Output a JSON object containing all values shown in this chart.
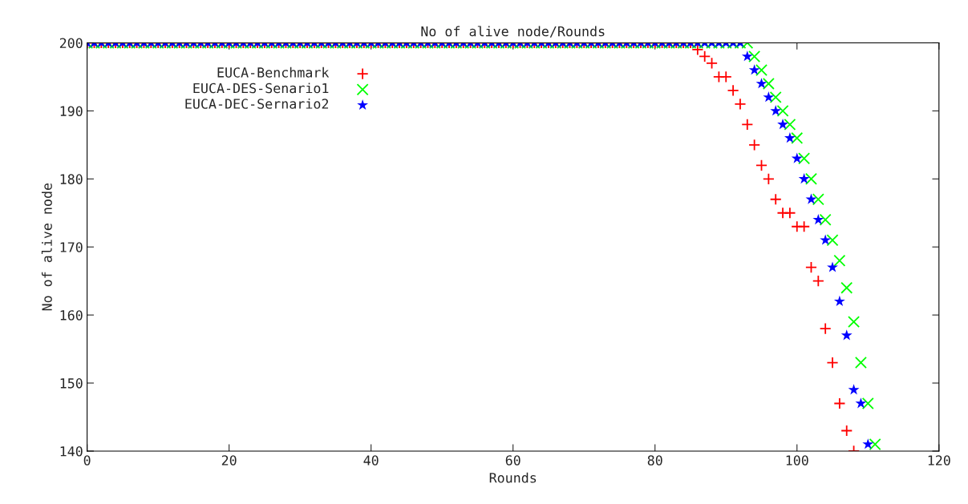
{
  "chart_data": {
    "type": "scatter",
    "title": "No of alive node/Rounds",
    "xlabel": "Rounds",
    "ylabel": "No of alive node",
    "xlim": [
      0,
      120
    ],
    "ylim": [
      140,
      200
    ],
    "xticks": [
      0,
      20,
      40,
      60,
      80,
      100,
      120
    ],
    "yticks": [
      140,
      150,
      160,
      170,
      180,
      190,
      200
    ],
    "grid": false,
    "legend": "top left",
    "series": [
      {
        "name": "EUCA-Benchmark",
        "color": "#ff0000",
        "marker": "plus",
        "x": [
          0,
          1,
          2,
          3,
          4,
          5,
          6,
          7,
          8,
          9,
          10,
          11,
          12,
          13,
          14,
          15,
          16,
          17,
          18,
          19,
          20,
          21,
          22,
          23,
          24,
          25,
          26,
          27,
          28,
          29,
          30,
          31,
          32,
          33,
          34,
          35,
          36,
          37,
          38,
          39,
          40,
          41,
          42,
          43,
          44,
          45,
          46,
          47,
          48,
          49,
          50,
          51,
          52,
          53,
          54,
          55,
          56,
          57,
          58,
          59,
          60,
          61,
          62,
          63,
          64,
          65,
          66,
          67,
          68,
          69,
          70,
          71,
          72,
          73,
          74,
          75,
          76,
          77,
          78,
          79,
          80,
          81,
          82,
          83,
          84,
          85,
          86,
          87,
          88,
          89,
          90,
          91,
          92,
          93,
          94,
          95,
          96,
          97,
          98,
          99,
          100,
          101,
          102,
          103,
          104,
          105,
          106,
          107,
          108
        ],
        "values": [
          200,
          200,
          200,
          200,
          200,
          200,
          200,
          200,
          200,
          200,
          200,
          200,
          200,
          200,
          200,
          200,
          200,
          200,
          200,
          200,
          200,
          200,
          200,
          200,
          200,
          200,
          200,
          200,
          200,
          200,
          200,
          200,
          200,
          200,
          200,
          200,
          200,
          200,
          200,
          200,
          200,
          200,
          200,
          200,
          200,
          200,
          200,
          200,
          200,
          200,
          200,
          200,
          200,
          200,
          200,
          200,
          200,
          200,
          200,
          200,
          200,
          200,
          200,
          200,
          200,
          200,
          200,
          200,
          200,
          200,
          200,
          200,
          200,
          200,
          200,
          200,
          200,
          200,
          200,
          200,
          200,
          200,
          200,
          200,
          200,
          200,
          199,
          198,
          197,
          195,
          195,
          193,
          191,
          188,
          185,
          182,
          180,
          177,
          175,
          175,
          173,
          173,
          167,
          165,
          158,
          153,
          147,
          143,
          140
        ]
      },
      {
        "name": "EUCA-DES-Senario1",
        "color": "#00ff00",
        "marker": "cross",
        "x": [
          0,
          1,
          2,
          3,
          4,
          5,
          6,
          7,
          8,
          9,
          10,
          11,
          12,
          13,
          14,
          15,
          16,
          17,
          18,
          19,
          20,
          21,
          22,
          23,
          24,
          25,
          26,
          27,
          28,
          29,
          30,
          31,
          32,
          33,
          34,
          35,
          36,
          37,
          38,
          39,
          40,
          41,
          42,
          43,
          44,
          45,
          46,
          47,
          48,
          49,
          50,
          51,
          52,
          53,
          54,
          55,
          56,
          57,
          58,
          59,
          60,
          61,
          62,
          63,
          64,
          65,
          66,
          67,
          68,
          69,
          70,
          71,
          72,
          73,
          74,
          75,
          76,
          77,
          78,
          79,
          80,
          81,
          82,
          83,
          84,
          85,
          86,
          87,
          88,
          89,
          90,
          91,
          92,
          93,
          94,
          95,
          96,
          97,
          98,
          99,
          100,
          101,
          102,
          103,
          104,
          105,
          106,
          107,
          108,
          109,
          110,
          111
        ],
        "values": [
          200,
          200,
          200,
          200,
          200,
          200,
          200,
          200,
          200,
          200,
          200,
          200,
          200,
          200,
          200,
          200,
          200,
          200,
          200,
          200,
          200,
          200,
          200,
          200,
          200,
          200,
          200,
          200,
          200,
          200,
          200,
          200,
          200,
          200,
          200,
          200,
          200,
          200,
          200,
          200,
          200,
          200,
          200,
          200,
          200,
          200,
          200,
          200,
          200,
          200,
          200,
          200,
          200,
          200,
          200,
          200,
          200,
          200,
          200,
          200,
          200,
          200,
          200,
          200,
          200,
          200,
          200,
          200,
          200,
          200,
          200,
          200,
          200,
          200,
          200,
          200,
          200,
          200,
          200,
          200,
          200,
          200,
          200,
          200,
          200,
          200,
          200,
          200,
          200,
          200,
          200,
          200,
          200,
          200,
          198,
          196,
          194,
          192,
          190,
          188,
          186,
          183,
          180,
          177,
          174,
          171,
          168,
          164,
          159,
          153,
          147,
          141
        ]
      },
      {
        "name": "EUCA-DEC-Sernario2",
        "color": "#0000ff",
        "marker": "star",
        "x": [
          0,
          1,
          2,
          3,
          4,
          5,
          6,
          7,
          8,
          9,
          10,
          11,
          12,
          13,
          14,
          15,
          16,
          17,
          18,
          19,
          20,
          21,
          22,
          23,
          24,
          25,
          26,
          27,
          28,
          29,
          30,
          31,
          32,
          33,
          34,
          35,
          36,
          37,
          38,
          39,
          40,
          41,
          42,
          43,
          44,
          45,
          46,
          47,
          48,
          49,
          50,
          51,
          52,
          53,
          54,
          55,
          56,
          57,
          58,
          59,
          60,
          61,
          62,
          63,
          64,
          65,
          66,
          67,
          68,
          69,
          70,
          71,
          72,
          73,
          74,
          75,
          76,
          77,
          78,
          79,
          80,
          81,
          82,
          83,
          84,
          85,
          86,
          87,
          88,
          89,
          90,
          91,
          92,
          93,
          94,
          95,
          96,
          97,
          98,
          99,
          100,
          101,
          102,
          103,
          104,
          105,
          106,
          107,
          108,
          109,
          110
        ],
        "values": [
          200,
          200,
          200,
          200,
          200,
          200,
          200,
          200,
          200,
          200,
          200,
          200,
          200,
          200,
          200,
          200,
          200,
          200,
          200,
          200,
          200,
          200,
          200,
          200,
          200,
          200,
          200,
          200,
          200,
          200,
          200,
          200,
          200,
          200,
          200,
          200,
          200,
          200,
          200,
          200,
          200,
          200,
          200,
          200,
          200,
          200,
          200,
          200,
          200,
          200,
          200,
          200,
          200,
          200,
          200,
          200,
          200,
          200,
          200,
          200,
          200,
          200,
          200,
          200,
          200,
          200,
          200,
          200,
          200,
          200,
          200,
          200,
          200,
          200,
          200,
          200,
          200,
          200,
          200,
          200,
          200,
          200,
          200,
          200,
          200,
          200,
          200,
          200,
          200,
          200,
          200,
          200,
          200,
          198,
          196,
          194,
          192,
          190,
          188,
          186,
          183,
          180,
          177,
          174,
          171,
          167,
          162,
          157,
          149,
          147,
          141
        ]
      }
    ]
  }
}
